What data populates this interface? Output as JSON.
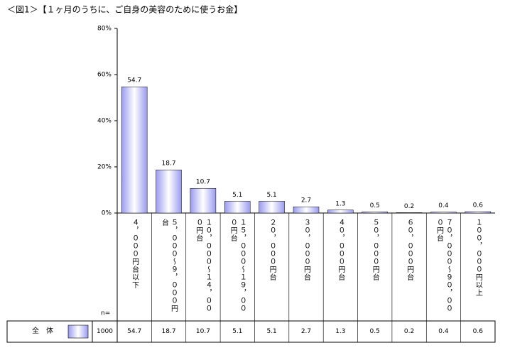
{
  "chart_data": {
    "type": "bar",
    "title": "＜図1＞【１ヶ月のうちに、ご自身の美容のために使うお金】",
    "categories": [
      "４，０００円台以下",
      "５，０００～９，０００円台",
      "１０，０００～１４，０００円台",
      "１５，０００～１９，０００円台",
      "２０，０００円台",
      "３０，０００円台",
      "４０，０００円台",
      "５０，０００円台",
      "６０，０００円台",
      "７０，０００～９０，０００円台",
      "１００，０００円以上"
    ],
    "series": [
      {
        "name": "全　体",
        "color": "#9a9af0",
        "values": [
          54.7,
          18.7,
          10.7,
          5.1,
          5.1,
          2.7,
          1.3,
          0.5,
          0.2,
          0.4,
          0.6
        ]
      }
    ],
    "n_label": "n=",
    "n": 1000,
    "ylim": [
      0,
      80
    ],
    "yticks": [
      {
        "value": 0,
        "label": "0%"
      },
      {
        "value": 20,
        "label": "20%"
      },
      {
        "value": 40,
        "label": "40%"
      },
      {
        "value": 60,
        "label": "60%"
      },
      {
        "value": 80,
        "label": "80%"
      }
    ]
  }
}
